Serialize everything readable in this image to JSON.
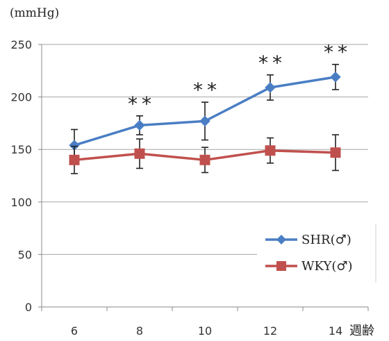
{
  "chart_data": {
    "type": "line",
    "title": "",
    "ylabel": "(mmHg)",
    "xlabel": "週齢",
    "ylim": [
      0,
      250
    ],
    "yticks": [
      "0",
      "50",
      "100",
      "150",
      "200",
      "250"
    ],
    "categories": [
      "6",
      "8",
      "10",
      "12",
      "14"
    ],
    "grid": true,
    "legend_position": "right",
    "series": [
      {
        "name": "SHR(♂)",
        "color": "#4a7ec4",
        "marker": "diamond",
        "values": [
          154,
          173,
          177,
          209,
          219
        ],
        "errors": [
          15,
          9,
          18,
          12,
          12
        ]
      },
      {
        "name": "WKY(♂)",
        "color": "#c0504d",
        "marker": "square",
        "values": [
          140,
          146,
          140,
          149,
          147
        ],
        "errors": [
          13,
          14,
          12,
          12,
          17
        ]
      }
    ],
    "annotations": [
      {
        "category": "8",
        "text": "**"
      },
      {
        "category": "10",
        "text": "**"
      },
      {
        "category": "12",
        "text": "**"
      },
      {
        "category": "14",
        "text": "**"
      }
    ]
  }
}
